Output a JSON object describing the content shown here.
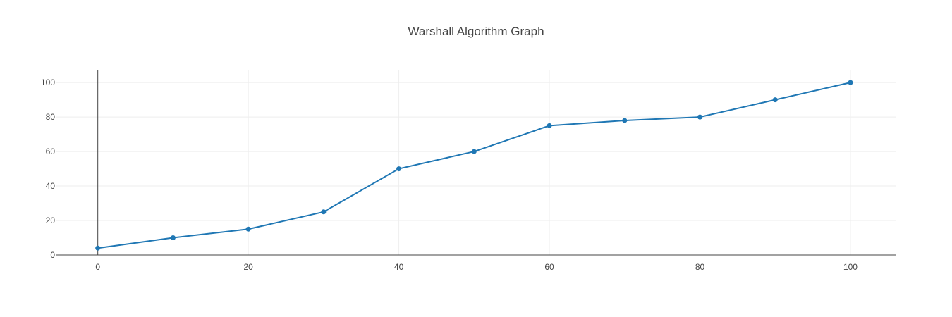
{
  "chart_data": {
    "type": "line",
    "title": "Warshall Algorithm Graph",
    "xlabel": "",
    "ylabel": "",
    "xlim": [
      -5.5,
      106
    ],
    "ylim": [
      0,
      107
    ],
    "x_ticks": [
      0,
      20,
      40,
      60,
      80,
      100
    ],
    "y_ticks": [
      0,
      20,
      40,
      60,
      80,
      100
    ],
    "grid": true,
    "legend": "none",
    "series": [
      {
        "x": [
          0,
          10,
          20,
          30,
          40,
          50,
          60,
          70,
          80,
          90,
          100
        ],
        "values": [
          4,
          10,
          15,
          25,
          50,
          60,
          75,
          78,
          80,
          90,
          100
        ],
        "color": "#1f77b4",
        "markers": true
      }
    ]
  }
}
